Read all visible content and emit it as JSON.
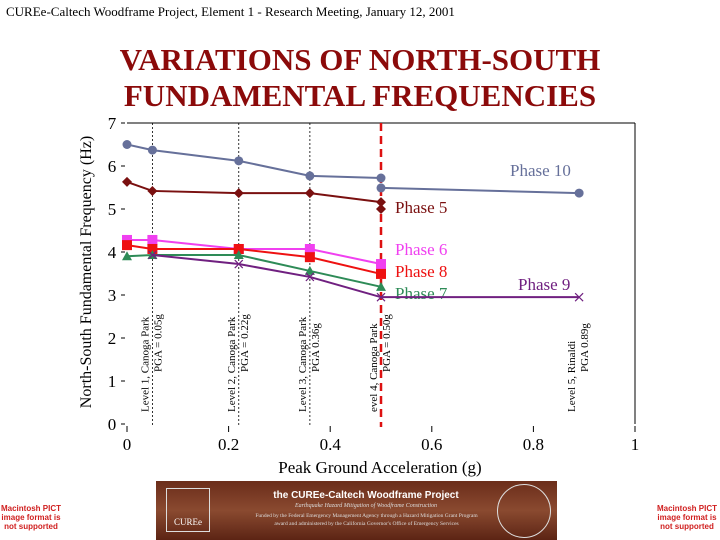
{
  "header": "CUREe-Caltech Woodframe Project, Element 1 - Research Meeting, January 12, 2001",
  "title_line1": "VARIATIONS OF NORTH-SOUTH",
  "title_line2": "FUNDAMENTAL FREQUENCIES",
  "chart_data": {
    "type": "line",
    "xlabel": "Peak Ground Acceleration (g)",
    "ylabel": "North-South Fundamental Frequency (Hz)",
    "xlim": [
      0,
      1
    ],
    "ylim": [
      0,
      7
    ],
    "xticks": [
      "0",
      "0.2",
      "0.4",
      "0.6",
      "0.8",
      "1"
    ],
    "yticks": [
      "0",
      "1",
      "2",
      "3",
      "4",
      "5",
      "6",
      "7"
    ],
    "series": [
      {
        "name": "Phase 10",
        "color": "#66709a",
        "marker": "circle",
        "points": [
          [
            0,
            6.5
          ],
          [
            0.05,
            6.37
          ],
          [
            0.22,
            6.12
          ],
          [
            0.36,
            5.77
          ],
          [
            0.5,
            5.72
          ]
        ],
        "points2": [
          [
            0.5,
            5.49
          ],
          [
            0.89,
            5.37
          ]
        ]
      },
      {
        "name": "Phase 5",
        "color": "#7a1010",
        "marker": "diamond",
        "points": [
          [
            0,
            5.63
          ],
          [
            0.05,
            5.42
          ],
          [
            0.22,
            5.37
          ],
          [
            0.36,
            5.37
          ],
          [
            0.5,
            5.16
          ]
        ],
        "points2": [
          [
            0.5,
            5.0
          ]
        ]
      },
      {
        "name": "Phase 6",
        "color": "#f040f0",
        "marker": "square",
        "points": [
          [
            0,
            4.28
          ],
          [
            0.05,
            4.28
          ],
          [
            0.22,
            4.07
          ],
          [
            0.36,
            4.07
          ],
          [
            0.5,
            3.72
          ]
        ]
      },
      {
        "name": "Phase 8",
        "color": "#ee1111",
        "marker": "square",
        "points": [
          [
            0,
            4.16
          ],
          [
            0.05,
            4.07
          ],
          [
            0.22,
            4.07
          ],
          [
            0.36,
            3.88
          ],
          [
            0.5,
            3.49
          ]
        ]
      },
      {
        "name": "Phase 7",
        "color": "#2e8b57",
        "marker": "triangle",
        "points": [
          [
            0,
            3.9
          ],
          [
            0.05,
            3.93
          ],
          [
            0.22,
            3.93
          ],
          [
            0.36,
            3.56
          ],
          [
            0.5,
            3.19
          ]
        ]
      },
      {
        "name": "Phase 9",
        "color": "#702080",
        "marker": "x",
        "points": [
          [
            0.05,
            3.93
          ],
          [
            0.22,
            3.72
          ],
          [
            0.36,
            3.42
          ],
          [
            0.5,
            2.95
          ],
          [
            0.89,
            2.95
          ]
        ]
      }
    ],
    "event_lines": [
      {
        "x": 0.05,
        "label1": "Level 1, Canoga Park",
        "label2": "PGA = 0.05g"
      },
      {
        "x": 0.22,
        "label1": "Level 2, Canoga Park",
        "label2": "PGA = 0.22g"
      },
      {
        "x": 0.36,
        "label1": "Level 3, Canoga Park",
        "label2": "PGA   0.36g"
      },
      {
        "x": 0.5,
        "label1": "evel 4, Canoga Park",
        "label2": "PGA = 0.50g",
        "highlight": true
      },
      {
        "x": 0.89,
        "label1": "Level 5, Rinaldi",
        "label2": "PGA   0.89g",
        "no_line": true
      }
    ]
  },
  "banner": {
    "title": "the CUREe-Caltech Woodframe Project",
    "subtitle": "Earthquake Hazard Mitigation of Woodframe Construction",
    "line1": "Funded by the Federal Emergency Management Agency through a Hazard Mitigation Grant Program",
    "line2": "award and administered by the California Governor's Office of Emergency Services",
    "logo": "CUREe"
  },
  "pict_notice": "Macintosh PICT image format is not supported"
}
